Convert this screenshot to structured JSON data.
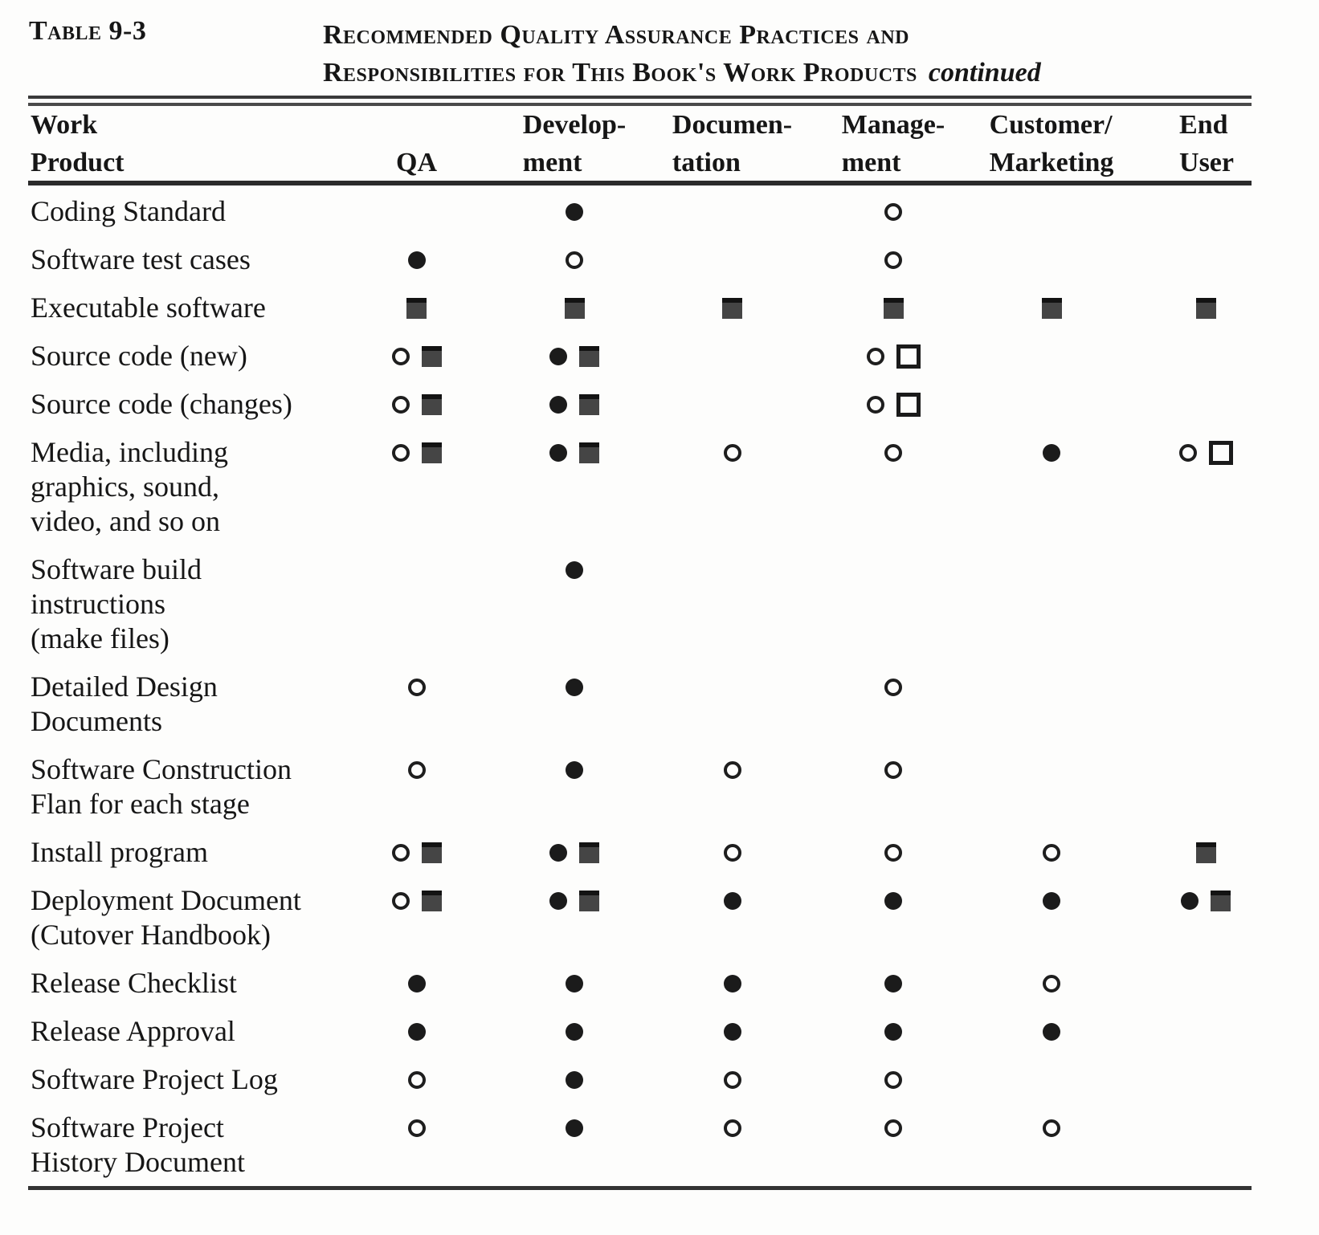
{
  "caption": {
    "table_label": "Table 9-3",
    "title_line1": "Recommended Quality Assurance Practices and",
    "title_line2": "Responsibilities for This Book's Work Products",
    "title_suffix": "continued"
  },
  "symbol_tokens": [
    "filled-circle",
    "open-circle",
    "filled-square",
    "open-square"
  ],
  "symbol_glyphs": {
    "filled-circle": "●",
    "open-circle": "○",
    "filled-square": "■",
    "open-square": "□"
  },
  "colors": {
    "ink": "#161616",
    "paper": "#fdfdfc",
    "rule": "#2b2b2b"
  },
  "table": {
    "columns": [
      {
        "id": "work-product",
        "lines": [
          "Work",
          "Product"
        ]
      },
      {
        "id": "qa",
        "lines": [
          "QA"
        ]
      },
      {
        "id": "development",
        "lines": [
          "Develop-",
          "ment"
        ]
      },
      {
        "id": "documentation",
        "lines": [
          "Documen-",
          "tation"
        ]
      },
      {
        "id": "management",
        "lines": [
          "Manage-",
          "ment"
        ]
      },
      {
        "id": "customer-marketing",
        "lines": [
          "Customer/",
          "Marketing"
        ]
      },
      {
        "id": "end-user",
        "lines": [
          "End",
          "User"
        ]
      }
    ],
    "rows": [
      {
        "label_lines": [
          "Coding Standard"
        ],
        "cells": [
          [],
          [
            "filled-circle"
          ],
          [],
          [
            "open-circle"
          ],
          [],
          []
        ]
      },
      {
        "label_lines": [
          "Software test cases"
        ],
        "cells": [
          [
            "filled-circle"
          ],
          [
            "open-circle"
          ],
          [],
          [
            "open-circle"
          ],
          [],
          []
        ]
      },
      {
        "label_lines": [
          "Executable software"
        ],
        "cells": [
          [
            "filled-square"
          ],
          [
            "filled-square"
          ],
          [
            "filled-square"
          ],
          [
            "filled-square"
          ],
          [
            "filled-square"
          ],
          [
            "filled-square"
          ]
        ]
      },
      {
        "label_lines": [
          "Source code (new)"
        ],
        "cells": [
          [
            "open-circle",
            "filled-square"
          ],
          [
            "filled-circle",
            "filled-square"
          ],
          [],
          [
            "open-circle",
            "open-square"
          ],
          [],
          []
        ]
      },
      {
        "label_lines": [
          "Source code (changes)"
        ],
        "cells": [
          [
            "open-circle",
            "filled-square"
          ],
          [
            "filled-circle",
            "filled-square"
          ],
          [],
          [
            "open-circle",
            "open-square"
          ],
          [],
          []
        ]
      },
      {
        "label_lines": [
          "Media, including",
          "graphics, sound,",
          "video, and so on"
        ],
        "cells": [
          [
            "open-circle",
            "filled-square"
          ],
          [
            "filled-circle",
            "filled-square"
          ],
          [
            "open-circle"
          ],
          [
            "open-circle"
          ],
          [
            "filled-circle"
          ],
          [
            "open-circle",
            "open-square"
          ]
        ]
      },
      {
        "label_lines": [
          "Software  build",
          "instructions",
          "(make files)"
        ],
        "cells": [
          [],
          [
            "filled-circle"
          ],
          [],
          [],
          [],
          []
        ]
      },
      {
        "label_lines": [
          "Detailed Design",
          "Documents"
        ],
        "cells": [
          [
            "open-circle"
          ],
          [
            "filled-circle"
          ],
          [],
          [
            "open-circle"
          ],
          [],
          []
        ]
      },
      {
        "label_lines": [
          "Software  Construction",
          "Flan for each stage"
        ],
        "cells": [
          [
            "open-circle"
          ],
          [
            "filled-circle"
          ],
          [
            "open-circle"
          ],
          [
            "open-circle"
          ],
          [],
          []
        ]
      },
      {
        "label_lines": [
          "Install program"
        ],
        "cells": [
          [
            "open-circle",
            "filled-square"
          ],
          [
            "filled-circle",
            "filled-square"
          ],
          [
            "open-circle"
          ],
          [
            "open-circle"
          ],
          [
            "open-circle"
          ],
          [
            "filled-square"
          ]
        ]
      },
      {
        "label_lines": [
          "Deployment Document",
          "(Cutover  Handbook)"
        ],
        "cells": [
          [
            "open-circle",
            "filled-square"
          ],
          [
            "filled-circle",
            "filled-square"
          ],
          [
            "filled-circle"
          ],
          [
            "filled-circle"
          ],
          [
            "filled-circle"
          ],
          [
            "filled-circle",
            "filled-square"
          ]
        ]
      },
      {
        "label_lines": [
          "Release  Checklist"
        ],
        "cells": [
          [
            "filled-circle"
          ],
          [
            "filled-circle"
          ],
          [
            "filled-circle"
          ],
          [
            "filled-circle"
          ],
          [
            "open-circle"
          ],
          []
        ]
      },
      {
        "label_lines": [
          "Release  Approval"
        ],
        "cells": [
          [
            "filled-circle"
          ],
          [
            "filled-circle"
          ],
          [
            "filled-circle"
          ],
          [
            "filled-circle"
          ],
          [
            "filled-circle"
          ],
          []
        ]
      },
      {
        "label_lines": [
          "Software Project Log"
        ],
        "cells": [
          [
            "open-circle"
          ],
          [
            "filled-circle"
          ],
          [
            "open-circle"
          ],
          [
            "open-circle"
          ],
          [],
          []
        ]
      },
      {
        "label_lines": [
          "Software Project",
          "History Document"
        ],
        "cells": [
          [
            "open-circle"
          ],
          [
            "filled-circle"
          ],
          [
            "open-circle"
          ],
          [
            "open-circle"
          ],
          [
            "open-circle"
          ],
          []
        ]
      }
    ]
  }
}
